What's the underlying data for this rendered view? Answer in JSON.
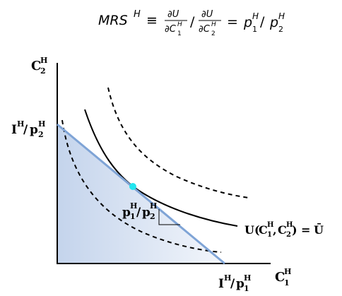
{
  "formula": {
    "lhs_main": "MRS",
    "lhs_sup": "H",
    "equiv": "≡",
    "partial": "∂",
    "u": "U",
    "c": "C",
    "sub1": "1",
    "sub2": "2",
    "sup_h": "H",
    "slash": "/",
    "equals": "=",
    "p": "p"
  },
  "axes": {
    "y_label_main": "C",
    "y_label_sup": "H",
    "y_label_sub": "2",
    "x_label_main": "C",
    "x_label_sup": "H",
    "x_label_sub": "1"
  },
  "intercepts": {
    "y_num_main": "I",
    "y_num_sup": "H",
    "y_den_main": "p",
    "y_den_sup": "H",
    "y_den_sub": "2",
    "x_num_main": "I",
    "x_num_sup": "H",
    "x_den_main": "p",
    "x_den_sup": "H",
    "x_den_sub": "1",
    "slash": "/"
  },
  "slope_label": {
    "num_main": "p",
    "num_sup": "H",
    "num_sub": "1",
    "den_main": "p",
    "den_sup": "H",
    "den_sub": "2",
    "slash": "/"
  },
  "curve_label": {
    "u": "U(",
    "c": "C",
    "sup": "H",
    "sub1": "1",
    "comma": ",",
    "sub2": "2",
    "close": ")",
    "equals": "=",
    "ubar": "Ū"
  },
  "colors": {
    "budget_line": "#7fa4d6",
    "budget_fill": "#c9d8ee",
    "tangency_point": "#22e5ef",
    "curves": "#000000"
  }
}
